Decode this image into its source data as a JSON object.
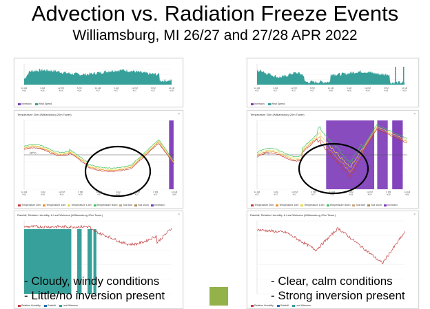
{
  "header": {
    "title": "Advection vs. Radiation Freeze Events",
    "subtitle": "Williamsburg, MI  26/27 and 27/28 APR 2022"
  },
  "colors": {
    "teal": "#37a09a",
    "purple": "#7b39b8",
    "red": "#c23b3b",
    "orange": "#e8912c",
    "yellow": "#e5d94a",
    "green": "#3fbf5f",
    "ellipse": "#000000",
    "accent_square": "#94b24a"
  },
  "left": {
    "wind_panel": {
      "x_ticks": [
        "12 AM\n4/26",
        "6 AM\n4/26",
        "12 PM\n4/26",
        "6 PM\n4/26",
        "12 AM\n4/27",
        "6 AM\n4/27",
        "12 PM\n4/27",
        "6 PM\n4/27",
        "12 AM\n4/28"
      ],
      "legend": [
        {
          "label": "Inversion",
          "color": "#7b39b8"
        },
        {
          "label": "Wind Speed",
          "color": "#37a09a"
        }
      ]
    },
    "temp_panel": {
      "title": "Temperature 20m (Williamsburg 20m Tower)",
      "ref_label": "(32°F)",
      "x_ticks": [
        "12 AM\n4/26",
        "6 AM\n4/26",
        "12 PM\n4/26",
        "6 PM\n4/26",
        "12 AM\n4/27",
        "6 AM\n4/27",
        "12 PM\n4/27",
        "6 PM\n4/27",
        "12 AM\n4/28"
      ],
      "legend": [
        {
          "label": "Temperature 20m",
          "color": "#c23b3b"
        },
        {
          "label": "Temperature 10m",
          "color": "#e8912c"
        },
        {
          "label": "Temperature 1.5m",
          "color": "#e5d94a"
        },
        {
          "label": "Temperature 50cm",
          "color": "#3fbf5f"
        },
        {
          "label": "Soil 5cm",
          "color": "#c9a77a"
        },
        {
          "label": "Soil 10cm",
          "color": "#b08a5a"
        },
        {
          "label": "Inversion",
          "color": "#7b39b8"
        }
      ]
    },
    "rain_panel": {
      "title": "Rainfall, Relative Humidity, & Leaf Wetness (Williamsburg 20m Tower)",
      "legend": [
        {
          "label": "Relative Humidity",
          "color": "#c23b3b"
        },
        {
          "label": "Rainfall",
          "color": "#1e6fb8"
        },
        {
          "label": "Leaf Wetness",
          "color": "#37a09a"
        }
      ]
    },
    "caption_line1": "- Cloudy, windy conditions",
    "caption_line2": "- Little/no inversion present"
  },
  "right": {
    "wind_panel": {
      "x_ticks": [
        "12 AM\n4/27",
        "6 AM\n4/27",
        "12 PM\n4/27",
        "6 PM\n4/27",
        "12 AM\n4/28",
        "6 AM\n4/28",
        "12 PM\n4/28",
        "6 PM\n4/28",
        "12 AM\n4/29"
      ],
      "legend": [
        {
          "label": "Inversion",
          "color": "#7b39b8"
        },
        {
          "label": "Wind Speed",
          "color": "#37a09a"
        }
      ]
    },
    "temp_panel": {
      "title": "Temperature 20m (Williamsburg 20m Tower)",
      "ref_label": "(32°F)",
      "x_ticks": [
        "12 AM\n4/27",
        "6 AM\n4/27",
        "12 PM\n4/27",
        "6 PM\n4/27",
        "12 AM\n4/28",
        "6 AM\n4/28",
        "12 PM\n4/28",
        "6 PM\n4/28",
        "12 AM\n4/29"
      ],
      "legend": [
        {
          "label": "Temperature 20m",
          "color": "#c23b3b"
        },
        {
          "label": "Temperature 10m",
          "color": "#e8912c"
        },
        {
          "label": "Temperature 1.5m",
          "color": "#e5d94a"
        },
        {
          "label": "Temperature 50cm",
          "color": "#3fbf5f"
        },
        {
          "label": "Soil 5cm",
          "color": "#c9a77a"
        },
        {
          "label": "Soil 10cm",
          "color": "#b08a5a"
        },
        {
          "label": "Inversion",
          "color": "#7b39b8"
        }
      ]
    },
    "rain_panel": {
      "title": "Rainfall, Relative Humidity, & Leaf Wetness (Williamsburg 20m Tower)",
      "legend": [
        {
          "label": "Relative Humidity",
          "color": "#c23b3b"
        },
        {
          "label": "Rainfall",
          "color": "#1e6fb8"
        },
        {
          "label": "Leaf Wetness",
          "color": "#37a09a"
        }
      ]
    },
    "caption_line1": "- Clear, calm conditions",
    "caption_line2": "- Strong inversion present"
  }
}
